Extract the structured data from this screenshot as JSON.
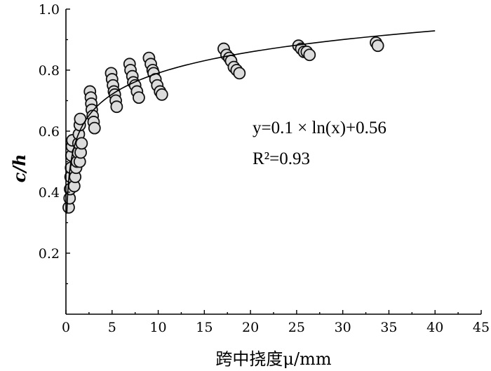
{
  "chart_data": {
    "type": "scatter",
    "xlabel": "跨中挠度μ/mm",
    "ylabel": "c/h",
    "xlim": [
      0,
      45
    ],
    "ylim": [
      0,
      1.0
    ],
    "x_ticks": [
      "0",
      "5",
      "10",
      "15",
      "20",
      "25",
      "30",
      "35",
      "40",
      "45"
    ],
    "y_ticks": [
      "0.2",
      "0.4",
      "0.6",
      "0.8",
      "1.0"
    ],
    "grid": false,
    "legend": "none",
    "annotation": {
      "equation": "y=0.1 × ln(x)+0.56",
      "r_squared": "R²=0.93"
    },
    "fit": {
      "form": "log",
      "a": 0.1,
      "b": 0.56,
      "x_range": [
        0.1,
        40
      ]
    },
    "series": [
      {
        "points": [
          [
            0.3,
            0.35
          ],
          [
            0.4,
            0.38
          ],
          [
            0.45,
            0.41
          ],
          [
            0.5,
            0.45
          ],
          [
            0.55,
            0.48
          ],
          [
            0.6,
            0.52
          ],
          [
            0.65,
            0.55
          ],
          [
            0.7,
            0.57
          ],
          [
            0.9,
            0.42
          ],
          [
            1.0,
            0.45
          ],
          [
            1.1,
            0.48
          ],
          [
            1.2,
            0.5
          ],
          [
            1.3,
            0.53
          ],
          [
            1.35,
            0.56
          ],
          [
            1.4,
            0.59
          ],
          [
            1.5,
            0.62
          ],
          [
            1.55,
            0.64
          ],
          [
            1.5,
            0.5
          ],
          [
            1.6,
            0.53
          ],
          [
            1.7,
            0.56
          ],
          [
            2.6,
            0.73
          ],
          [
            2.7,
            0.71
          ],
          [
            2.75,
            0.69
          ],
          [
            2.8,
            0.67
          ],
          [
            2.9,
            0.65
          ],
          [
            3.0,
            0.63
          ],
          [
            3.1,
            0.61
          ],
          [
            4.9,
            0.79
          ],
          [
            5.0,
            0.77
          ],
          [
            5.1,
            0.75
          ],
          [
            5.2,
            0.73
          ],
          [
            5.3,
            0.72
          ],
          [
            5.4,
            0.7
          ],
          [
            5.5,
            0.68
          ],
          [
            6.9,
            0.82
          ],
          [
            7.0,
            0.8
          ],
          [
            7.2,
            0.78
          ],
          [
            7.3,
            0.76
          ],
          [
            7.5,
            0.75
          ],
          [
            7.7,
            0.73
          ],
          [
            7.9,
            0.71
          ],
          [
            9.0,
            0.84
          ],
          [
            9.2,
            0.82
          ],
          [
            9.4,
            0.8
          ],
          [
            9.5,
            0.79
          ],
          [
            9.7,
            0.77
          ],
          [
            9.9,
            0.75
          ],
          [
            10.2,
            0.73
          ],
          [
            10.4,
            0.72
          ],
          [
            17.1,
            0.87
          ],
          [
            17.4,
            0.85
          ],
          [
            17.7,
            0.84
          ],
          [
            17.9,
            0.83
          ],
          [
            18.2,
            0.81
          ],
          [
            18.5,
            0.8
          ],
          [
            18.8,
            0.79
          ],
          [
            25.2,
            0.88
          ],
          [
            25.5,
            0.87
          ],
          [
            25.8,
            0.86
          ],
          [
            26.1,
            0.86
          ],
          [
            26.4,
            0.85
          ],
          [
            33.6,
            0.89
          ],
          [
            33.8,
            0.88
          ]
        ]
      }
    ]
  }
}
